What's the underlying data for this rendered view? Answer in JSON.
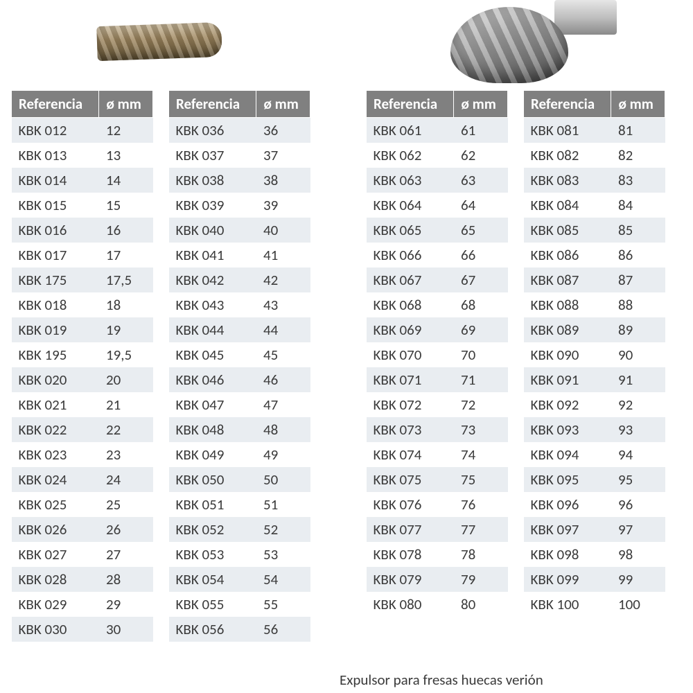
{
  "colors": {
    "header_bg": "#808080",
    "header_fg": "#ffffff",
    "row_odd_bg": "#e9edf1",
    "row_even_bg": "#ffffff",
    "text": "#3b3b3b",
    "page_bg": "#ffffff"
  },
  "typography": {
    "font_family": "Calibri, Segoe UI, Arial, sans-serif",
    "cell_fontsize_pt": 16,
    "header_fontweight": 700
  },
  "headers": {
    "ref": "Referencia",
    "mm": "ø mm"
  },
  "tables": [
    {
      "rows": [
        {
          "ref": "KBK 012",
          "mm": "12"
        },
        {
          "ref": "KBK 013",
          "mm": "13"
        },
        {
          "ref": "KBK 014",
          "mm": "14"
        },
        {
          "ref": "KBK 015",
          "mm": "15"
        },
        {
          "ref": "KBK 016",
          "mm": "16"
        },
        {
          "ref": "KBK 017",
          "mm": "17"
        },
        {
          "ref": "KBK 175",
          "mm": "17,5"
        },
        {
          "ref": "KBK 018",
          "mm": "18"
        },
        {
          "ref": "KBK 019",
          "mm": "19"
        },
        {
          "ref": "KBK 195",
          "mm": "19,5"
        },
        {
          "ref": "KBK 020",
          "mm": "20"
        },
        {
          "ref": "KBK 021",
          "mm": "21"
        },
        {
          "ref": "KBK 022",
          "mm": "22"
        },
        {
          "ref": "KBK 023",
          "mm": "23"
        },
        {
          "ref": "KBK 024",
          "mm": "24"
        },
        {
          "ref": "KBK 025",
          "mm": "25"
        },
        {
          "ref": "KBK 026",
          "mm": "26"
        },
        {
          "ref": "KBK 027",
          "mm": "27"
        },
        {
          "ref": "KBK 028",
          "mm": "28"
        },
        {
          "ref": "KBK 029",
          "mm": "29"
        },
        {
          "ref": "KBK 030",
          "mm": "30"
        }
      ]
    },
    {
      "rows": [
        {
          "ref": "KBK 036",
          "mm": "36"
        },
        {
          "ref": "KBK 037",
          "mm": "37"
        },
        {
          "ref": "KBK 038",
          "mm": "38"
        },
        {
          "ref": "KBK 039",
          "mm": "39"
        },
        {
          "ref": "KBK 040",
          "mm": "40"
        },
        {
          "ref": "KBK 041",
          "mm": "41"
        },
        {
          "ref": "KBK 042",
          "mm": "42"
        },
        {
          "ref": "KBK 043",
          "mm": "43"
        },
        {
          "ref": "KBK 044",
          "mm": "44"
        },
        {
          "ref": "KBK 045",
          "mm": "45"
        },
        {
          "ref": "KBK 046",
          "mm": "46"
        },
        {
          "ref": "KBK 047",
          "mm": "47"
        },
        {
          "ref": "KBK 048",
          "mm": "48"
        },
        {
          "ref": "KBK 049",
          "mm": "49"
        },
        {
          "ref": "KBK 050",
          "mm": "50"
        },
        {
          "ref": "KBK 051",
          "mm": "51"
        },
        {
          "ref": "KBK 052",
          "mm": "52"
        },
        {
          "ref": "KBK 053",
          "mm": "53"
        },
        {
          "ref": "KBK 054",
          "mm": "54"
        },
        {
          "ref": "KBK 055",
          "mm": "55"
        },
        {
          "ref": "KBK 056",
          "mm": "56"
        }
      ]
    },
    {
      "rows": [
        {
          "ref": "KBK 061",
          "mm": "61"
        },
        {
          "ref": "KBK 062",
          "mm": "62"
        },
        {
          "ref": "KBK 063",
          "mm": "63"
        },
        {
          "ref": "KBK 064",
          "mm": "64"
        },
        {
          "ref": "KBK 065",
          "mm": "65"
        },
        {
          "ref": "KBK 066",
          "mm": "66"
        },
        {
          "ref": "KBK 067",
          "mm": "67"
        },
        {
          "ref": "KBK 068",
          "mm": "68"
        },
        {
          "ref": "KBK 069",
          "mm": "69"
        },
        {
          "ref": "KBK 070",
          "mm": "70"
        },
        {
          "ref": "KBK 071",
          "mm": "71"
        },
        {
          "ref": "KBK 072",
          "mm": "72"
        },
        {
          "ref": "KBK 073",
          "mm": "73"
        },
        {
          "ref": "KBK 074",
          "mm": "74"
        },
        {
          "ref": "KBK 075",
          "mm": "75"
        },
        {
          "ref": "KBK 076",
          "mm": "76"
        },
        {
          "ref": "KBK 077",
          "mm": "77"
        },
        {
          "ref": "KBK 078",
          "mm": "78"
        },
        {
          "ref": "KBK 079",
          "mm": "79"
        },
        {
          "ref": "KBK 080",
          "mm": "80"
        }
      ]
    },
    {
      "rows": [
        {
          "ref": "KBK 081",
          "mm": "81"
        },
        {
          "ref": "KBK 082",
          "mm": "82"
        },
        {
          "ref": "KBK 083",
          "mm": "83"
        },
        {
          "ref": "KBK 084",
          "mm": "84"
        },
        {
          "ref": "KBK 085",
          "mm": "85"
        },
        {
          "ref": "KBK 086",
          "mm": "86"
        },
        {
          "ref": "KBK 087",
          "mm": "87"
        },
        {
          "ref": "KBK 088",
          "mm": "88"
        },
        {
          "ref": "KBK 089",
          "mm": "89"
        },
        {
          "ref": "KBK 090",
          "mm": "90"
        },
        {
          "ref": "KBK 091",
          "mm": "91"
        },
        {
          "ref": "KBK 092",
          "mm": "92"
        },
        {
          "ref": "KBK 093",
          "mm": "93"
        },
        {
          "ref": "KBK 094",
          "mm": "94"
        },
        {
          "ref": "KBK 095",
          "mm": "95"
        },
        {
          "ref": "KBK 096",
          "mm": "96"
        },
        {
          "ref": "KBK 097",
          "mm": "97"
        },
        {
          "ref": "KBK 098",
          "mm": "98"
        },
        {
          "ref": "KBK 099",
          "mm": "99"
        },
        {
          "ref": "KBK 100",
          "mm": "100"
        }
      ]
    }
  ],
  "footer_text": "Expulsor para fresas huecas verión"
}
